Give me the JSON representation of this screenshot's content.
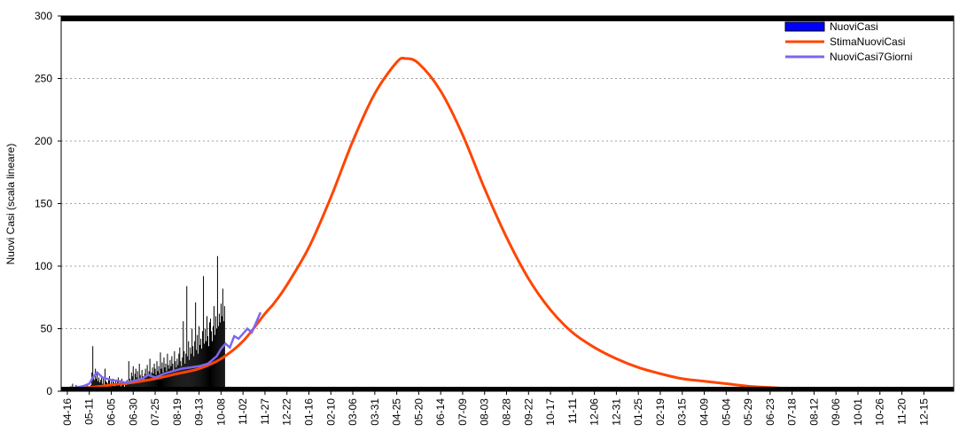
{
  "chart_data": {
    "type": "line",
    "title": "",
    "xlabel": "",
    "ylabel": "Nuovi Casi (scala lineare)",
    "ylim": [
      0,
      300
    ],
    "y_ticks": [
      0,
      50,
      100,
      150,
      200,
      250,
      300
    ],
    "x_tick_labels": [
      "04-16",
      "05-11",
      "06-05",
      "06-30",
      "07-25",
      "08-19",
      "09-13",
      "10-08",
      "11-02",
      "11-27",
      "12-22",
      "01-16",
      "02-10",
      "03-06",
      "03-31",
      "04-25",
      "05-20",
      "06-14",
      "07-09",
      "08-03",
      "08-28",
      "09-22",
      "10-17",
      "11-11",
      "12-06",
      "12-31",
      "01-25",
      "02-19",
      "03-15",
      "04-09",
      "05-04",
      "05-29",
      "06-23",
      "07-18",
      "08-12",
      "09-06",
      "10-01",
      "10-26",
      "11-20",
      "12-15"
    ],
    "x_tick_step_days": 25,
    "x_range_days": [
      -7,
      1009
    ],
    "grid": true,
    "legend_position": "top-right",
    "colors": {
      "bars": "#000000",
      "estimate": "#ff4500",
      "avg7": "#7b68ee",
      "legend_bar": "#0000ff"
    },
    "series": [
      {
        "name": "NuoviCasi",
        "kind": "bar",
        "start_tick": "04-16",
        "values": [
          2,
          0,
          3,
          1,
          4,
          2,
          6,
          1,
          3,
          0,
          5,
          2,
          1,
          4,
          3,
          2,
          0,
          3,
          5,
          2,
          4,
          1,
          3,
          6,
          2,
          4,
          3,
          5,
          15,
          36,
          12,
          9,
          18,
          10,
          14,
          8,
          11,
          7,
          9,
          12,
          6,
          10,
          5,
          18,
          8,
          7,
          6,
          9,
          12,
          5,
          8,
          6,
          10,
          7,
          4,
          9,
          6,
          8,
          11,
          5,
          7,
          4,
          10,
          6,
          8,
          3,
          7,
          5,
          9,
          6,
          24,
          10,
          8,
          15,
          12,
          20,
          9,
          14,
          18,
          11,
          16,
          8,
          22,
          13,
          10,
          17,
          12,
          9,
          14,
          18,
          11,
          21,
          13,
          16,
          26,
          12,
          15,
          19,
          14,
          22,
          18,
          13,
          24,
          16,
          20,
          14,
          31,
          18,
          23,
          15,
          27,
          19,
          22,
          16,
          30,
          21,
          18,
          25,
          20,
          28,
          22,
          17,
          32,
          24,
          19,
          26,
          21,
          30,
          35,
          24,
          20,
          27,
          56,
          32,
          22,
          30,
          84,
          28,
          40,
          25,
          35,
          30,
          50,
          36,
          28,
          40,
          71,
          33,
          45,
          30,
          52,
          37,
          42,
          34,
          48,
          92,
          38,
          50,
          40,
          60,
          44,
          36,
          55,
          58,
          48,
          40,
          52,
          68,
          45,
          60,
          50,
          108,
          52,
          62,
          55,
          70,
          60,
          82,
          56,
          68
        ]
      },
      {
        "name": "StimaNuoviCasi",
        "kind": "line",
        "control_points": [
          [
            -7,
            1
          ],
          [
            0,
            2
          ],
          [
            25,
            3
          ],
          [
            50,
            5
          ],
          [
            75,
            7
          ],
          [
            100,
            10
          ],
          [
            125,
            14
          ],
          [
            150,
            18
          ],
          [
            175,
            26
          ],
          [
            200,
            40
          ],
          [
            225,
            62
          ],
          [
            235,
            70
          ],
          [
            250,
            85
          ],
          [
            275,
            115
          ],
          [
            300,
            155
          ],
          [
            325,
            200
          ],
          [
            350,
            238
          ],
          [
            375,
            263
          ],
          [
            385,
            266
          ],
          [
            400,
            262
          ],
          [
            425,
            240
          ],
          [
            450,
            205
          ],
          [
            475,
            162
          ],
          [
            500,
            123
          ],
          [
            525,
            90
          ],
          [
            550,
            65
          ],
          [
            575,
            47
          ],
          [
            600,
            35
          ],
          [
            625,
            26
          ],
          [
            650,
            19
          ],
          [
            675,
            14
          ],
          [
            700,
            10
          ],
          [
            725,
            8
          ],
          [
            750,
            6
          ],
          [
            775,
            4
          ],
          [
            800,
            3
          ],
          [
            825,
            2
          ],
          [
            850,
            2
          ],
          [
            875,
            1
          ],
          [
            900,
            1
          ],
          [
            925,
            1
          ],
          [
            950,
            1
          ],
          [
            975,
            1
          ],
          [
            1000,
            1
          ],
          [
            1009,
            1
          ]
        ]
      },
      {
        "name": "NuoviCasi7Giorni",
        "kind": "line",
        "values": [
          [
            -7,
            1
          ],
          [
            0,
            2
          ],
          [
            10,
            3
          ],
          [
            18,
            4
          ],
          [
            25,
            6
          ],
          [
            30,
            12
          ],
          [
            34,
            15
          ],
          [
            40,
            11
          ],
          [
            50,
            9
          ],
          [
            60,
            8
          ],
          [
            65,
            7
          ],
          [
            75,
            8
          ],
          [
            85,
            10
          ],
          [
            92,
            13
          ],
          [
            100,
            11
          ],
          [
            110,
            14
          ],
          [
            120,
            16
          ],
          [
            130,
            18
          ],
          [
            140,
            19
          ],
          [
            150,
            20
          ],
          [
            160,
            22
          ],
          [
            170,
            28
          ],
          [
            175,
            34
          ],
          [
            180,
            38
          ],
          [
            185,
            35
          ],
          [
            190,
            44
          ],
          [
            195,
            42
          ],
          [
            200,
            46
          ],
          [
            205,
            50
          ],
          [
            210,
            47
          ],
          [
            215,
            55
          ],
          [
            218,
            60
          ],
          [
            220,
            63
          ]
        ]
      }
    ]
  }
}
